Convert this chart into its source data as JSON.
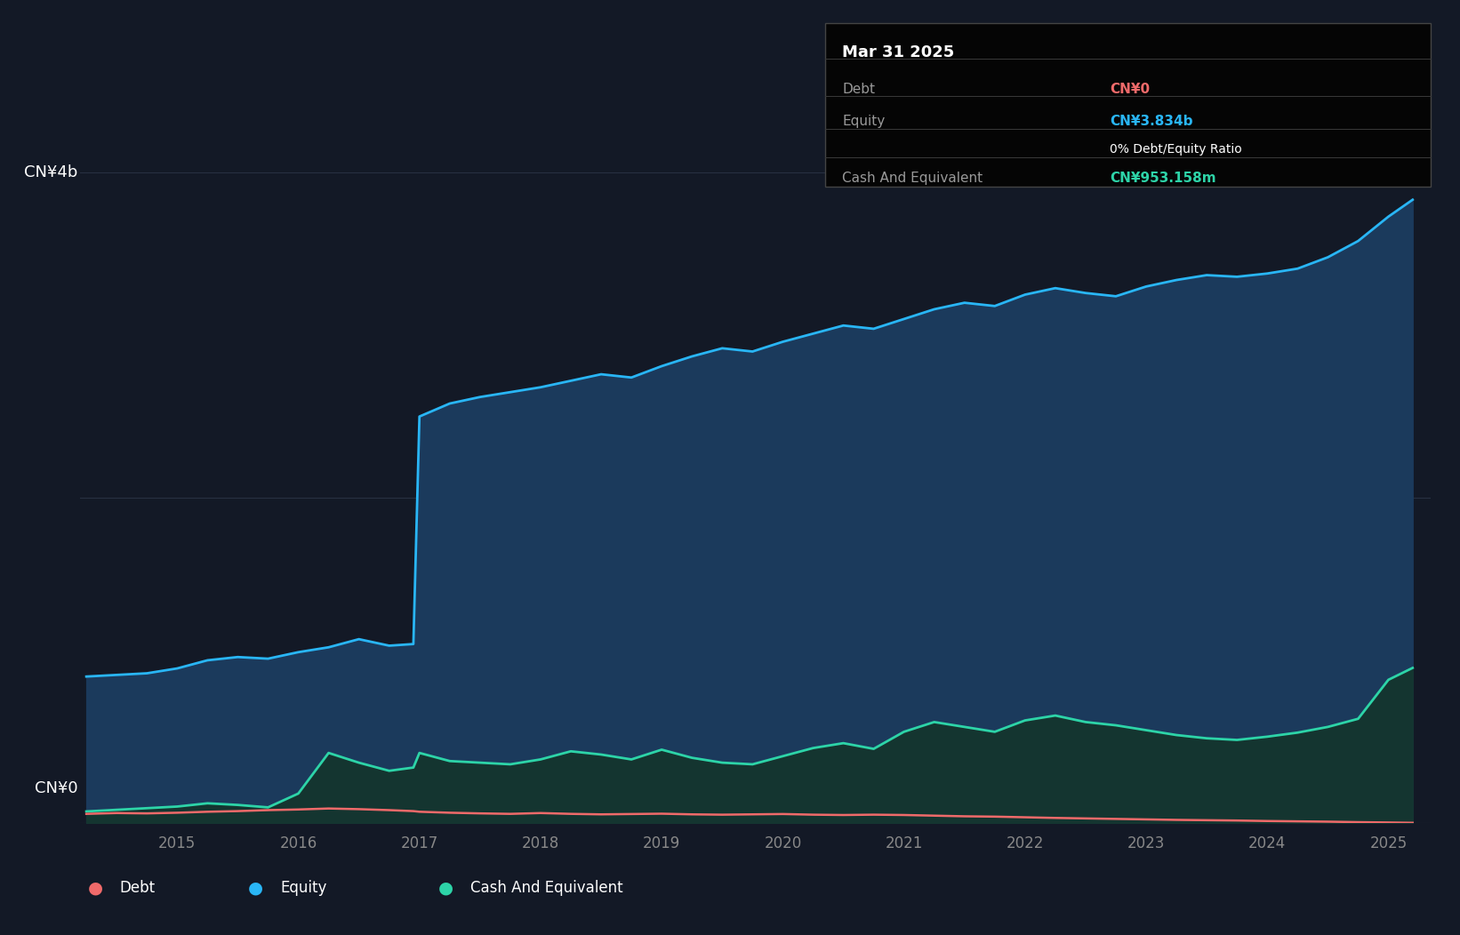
{
  "background_color": "#131926",
  "plot_bg_color": "#131926",
  "grid_color": "#2d3748",
  "line_color_equity": "#29b6f6",
  "fill_color_equity": "#1b3a5c",
  "line_color_debt": "#f06a6a",
  "line_color_cash": "#2dd4a8",
  "fill_color_cash": "#143530",
  "tooltip_bg": "#000000",
  "tooltip_border": "#444444",
  "tooltip_title": "Mar 31 2025",
  "tooltip_debt_label": "Debt",
  "tooltip_debt_value": "CN¥0",
  "tooltip_debt_color": "#f06a6a",
  "tooltip_equity_label": "Equity",
  "tooltip_equity_value": "CN¥3.834b",
  "tooltip_equity_color": "#29b6f6",
  "tooltip_ratio": "0% Debt/Equity Ratio",
  "tooltip_cash_label": "Cash And Equivalent",
  "tooltip_cash_value": "CN¥953.158m",
  "tooltip_cash_color": "#2dd4a8",
  "legend_items": [
    "Debt",
    "Equity",
    "Cash And Equivalent"
  ],
  "legend_colors": [
    "#f06a6a",
    "#29b6f6",
    "#2dd4a8"
  ],
  "ylim_max": 4200000000,
  "ytick_labels": [
    "CN¥0",
    "CN¥4b"
  ],
  "ytick_values": [
    0,
    4000000000
  ],
  "xtick_years": [
    2015,
    2016,
    2017,
    2018,
    2019,
    2020,
    2021,
    2022,
    2023,
    2024,
    2025
  ],
  "time_points": [
    2014.25,
    2014.5,
    2014.75,
    2015.0,
    2015.25,
    2015.5,
    2015.75,
    2016.0,
    2016.25,
    2016.5,
    2016.75,
    2016.95,
    2017.0,
    2017.25,
    2017.5,
    2017.75,
    2018.0,
    2018.25,
    2018.5,
    2018.75,
    2019.0,
    2019.25,
    2019.5,
    2019.75,
    2020.0,
    2020.25,
    2020.5,
    2020.75,
    2021.0,
    2021.25,
    2021.5,
    2021.75,
    2022.0,
    2022.25,
    2022.5,
    2022.75,
    2023.0,
    2023.25,
    2023.5,
    2023.75,
    2024.0,
    2024.25,
    2024.5,
    2024.75,
    2025.0,
    2025.2
  ],
  "equity_values": [
    900000000,
    910000000,
    920000000,
    950000000,
    1000000000,
    1020000000,
    1010000000,
    1050000000,
    1080000000,
    1130000000,
    1090000000,
    1100000000,
    2500000000,
    2580000000,
    2620000000,
    2650000000,
    2680000000,
    2720000000,
    2760000000,
    2740000000,
    2810000000,
    2870000000,
    2920000000,
    2900000000,
    2960000000,
    3010000000,
    3060000000,
    3040000000,
    3100000000,
    3160000000,
    3200000000,
    3180000000,
    3250000000,
    3290000000,
    3260000000,
    3240000000,
    3300000000,
    3340000000,
    3370000000,
    3360000000,
    3380000000,
    3410000000,
    3480000000,
    3580000000,
    3730000000,
    3834000000
  ],
  "debt_values": [
    55000000,
    60000000,
    58000000,
    62000000,
    68000000,
    72000000,
    78000000,
    82000000,
    88000000,
    84000000,
    78000000,
    72000000,
    68000000,
    62000000,
    58000000,
    55000000,
    60000000,
    55000000,
    52000000,
    54000000,
    56000000,
    52000000,
    50000000,
    52000000,
    54000000,
    50000000,
    48000000,
    50000000,
    48000000,
    44000000,
    40000000,
    38000000,
    34000000,
    30000000,
    27000000,
    24000000,
    21000000,
    18000000,
    16000000,
    14000000,
    11000000,
    9000000,
    7000000,
    4000000,
    2000000,
    0
  ],
  "cash_values": [
    70000000,
    80000000,
    90000000,
    100000000,
    120000000,
    110000000,
    95000000,
    180000000,
    430000000,
    370000000,
    320000000,
    340000000,
    430000000,
    380000000,
    370000000,
    360000000,
    390000000,
    440000000,
    420000000,
    390000000,
    450000000,
    400000000,
    370000000,
    360000000,
    410000000,
    460000000,
    490000000,
    455000000,
    560000000,
    620000000,
    590000000,
    560000000,
    630000000,
    660000000,
    620000000,
    600000000,
    570000000,
    540000000,
    520000000,
    510000000,
    530000000,
    555000000,
    590000000,
    640000000,
    880000000,
    953158000
  ]
}
